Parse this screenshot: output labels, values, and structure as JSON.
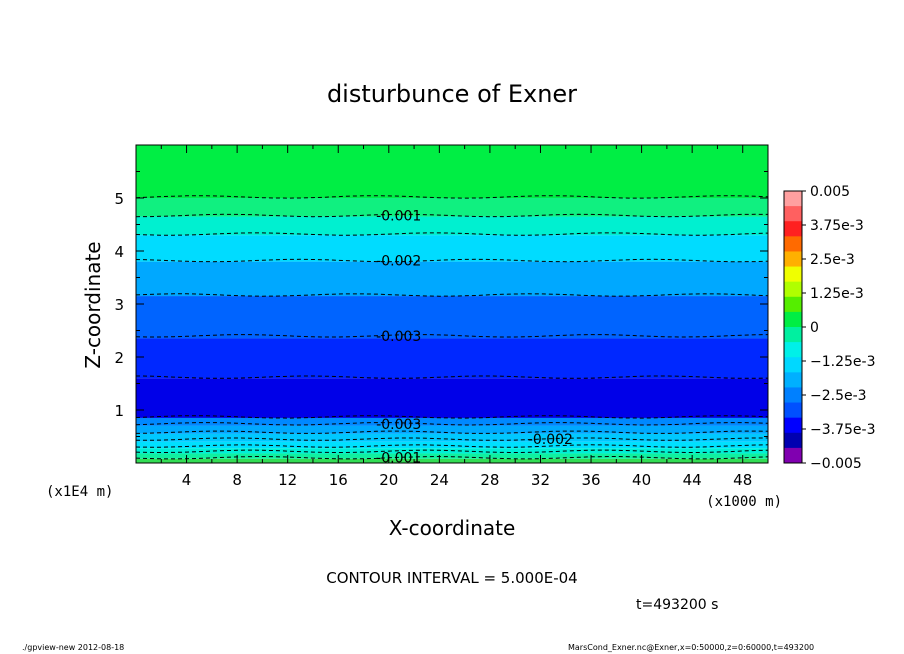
{
  "chart_data": {
    "type": "heatmap",
    "title": "disturbunce of Exner",
    "xlabel": "X-coordinate",
    "ylabel": "Z-coordinate",
    "x_unit": "(x1000 m)",
    "y_unit": "(x1E4 m)",
    "xlim": [
      0,
      50
    ],
    "ylim": [
      0,
      6
    ],
    "x_ticks": [
      "4",
      "8",
      "12",
      "16",
      "20",
      "24",
      "28",
      "32",
      "36",
      "40",
      "44",
      "48"
    ],
    "y_ticks": [
      "1",
      "2",
      "3",
      "4",
      "5"
    ],
    "fill_bands": [
      {
        "z0": 0.0,
        "z1": 0.08,
        "color": "#33dd55"
      },
      {
        "z0": 0.08,
        "z1": 0.18,
        "color": "#10f0a0"
      },
      {
        "z0": 0.18,
        "z1": 0.28,
        "color": "#00f0d8"
      },
      {
        "z0": 0.28,
        "z1": 0.4,
        "color": "#00e0ff"
      },
      {
        "z0": 0.4,
        "z1": 0.55,
        "color": "#00c8ff"
      },
      {
        "z0": 0.55,
        "z1": 0.7,
        "color": "#00a8ff"
      },
      {
        "z0": 0.7,
        "z1": 0.85,
        "color": "#0088ff"
      },
      {
        "z0": 0.85,
        "z1": 1.6,
        "color": "#0000e8"
      },
      {
        "z0": 1.6,
        "z1": 2.35,
        "color": "#0028ff"
      },
      {
        "z0": 2.35,
        "z1": 3.15,
        "color": "#0064ff"
      },
      {
        "z0": 3.15,
        "z1": 3.8,
        "color": "#00a8ff"
      },
      {
        "z0": 3.8,
        "z1": 4.3,
        "color": "#00dcff"
      },
      {
        "z0": 4.3,
        "z1": 4.65,
        "color": "#00f0d0"
      },
      {
        "z0": 4.65,
        "z1": 5.0,
        "color": "#10f080"
      },
      {
        "z0": 5.0,
        "z1": 6.0,
        "color": "#00ee44"
      }
    ],
    "contour_lines": [
      {
        "z": 0.1,
        "label": "-0.001",
        "label_x": 19
      },
      {
        "z": 0.22,
        "label": "",
        "label_x": null
      },
      {
        "z": 0.32,
        "label": "",
        "label_x": null
      },
      {
        "z": 0.45,
        "label": "-0.002",
        "label_x": 31
      },
      {
        "z": 0.58,
        "label": "",
        "label_x": null
      },
      {
        "z": 0.74,
        "label": "-0.003",
        "label_x": 19
      },
      {
        "z": 0.87,
        "label": "",
        "label_x": null
      },
      {
        "z": 1.62,
        "label": "",
        "label_x": null
      },
      {
        "z": 2.4,
        "label": "-0.003",
        "label_x": 19
      },
      {
        "z": 3.17,
        "label": "",
        "label_x": null
      },
      {
        "z": 3.82,
        "label": "-0.002",
        "label_x": 19
      },
      {
        "z": 4.32,
        "label": "",
        "label_x": null
      },
      {
        "z": 4.67,
        "label": "-0.001",
        "label_x": 19
      },
      {
        "z": 5.02,
        "label": "",
        "label_x": null
      }
    ],
    "colorbar": {
      "labels": [
        "0.005",
        "3.75e-3",
        "2.5e-3",
        "1.25e-3",
        "0",
        "−1.25e-3",
        "−2.5e-3",
        "−3.75e-3",
        "−0.005"
      ],
      "colors": [
        "#ffa0a0",
        "#ff6060",
        "#ff2020",
        "#ff6a00",
        "#ffb000",
        "#f0ff00",
        "#b0ff00",
        "#55ee00",
        "#00ee44",
        "#00f0a0",
        "#00f0e8",
        "#00d8ff",
        "#00b0ff",
        "#0080ff",
        "#0050ff",
        "#0000ff",
        "#0000b0",
        "#8000b0"
      ]
    },
    "grid": false
  },
  "contour_interval": "CONTOUR INTERVAL = 5.000E-04",
  "time_label": "t=493200 s",
  "footer_left": "./gpview-new   2012-08-18",
  "footer_right": "MarsCond_Exner.nc@Exner,x=0:50000,z=0:60000,t=493200"
}
